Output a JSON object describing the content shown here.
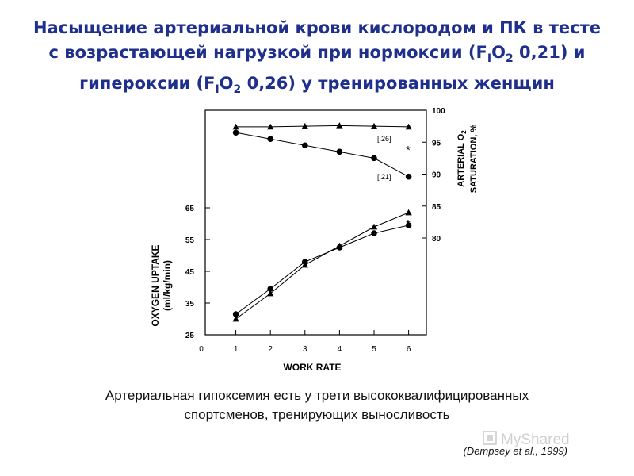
{
  "title": {
    "line1": "Насыщение артериальной крови кислородом и ПК в тесте",
    "line2_a": "с возрастающей нагрузкой при нормоксии (F",
    "sub_i": "I",
    "line2_b": "O",
    "sub_2": "2",
    "line2_c": " 0,21) и",
    "line3_a": "гипероксии (F",
    "line3_b": "O",
    "line3_c": " 0,26) у тренированных женщин"
  },
  "caption": {
    "line1": "Артериальная гипоксемия есть у трети высококвалифицированных",
    "line2": "спортсменов, тренирующих выносливость"
  },
  "reference": "(Dempsey et al., 1999)",
  "watermark": "MyShared",
  "chart_data": {
    "type": "line",
    "xlabel": "WORK RATE",
    "x_ticks": [
      0,
      1,
      2,
      3,
      4,
      5,
      6
    ],
    "left_axis": {
      "label_line1": "OXYGEN UPTAKE",
      "label_line2": "(ml/kg/min)",
      "ticks": [
        25,
        35,
        45,
        55,
        65
      ],
      "range": [
        25,
        65
      ]
    },
    "right_axis": {
      "label_line1": "ARTERIAL O",
      "label_sub": "2",
      "label_line2": "SATURATION, %",
      "ticks": [
        80,
        85,
        90,
        95,
        100
      ],
      "range": [
        80,
        100
      ]
    },
    "saturation_series": [
      {
        "name": "[.26]",
        "marker": "triangle",
        "x": [
          1,
          2,
          3,
          4,
          5,
          6
        ],
        "values": [
          97.4,
          97.4,
          97.5,
          97.6,
          97.5,
          97.4
        ]
      },
      {
        "name": "[.21]",
        "marker": "circle",
        "x": [
          1,
          2,
          3,
          4,
          5,
          6
        ],
        "values": [
          96.5,
          95.5,
          94.5,
          93.5,
          92.5,
          89.6
        ]
      }
    ],
    "vo2_series": [
      {
        "name": "[.26]",
        "marker": "triangle",
        "x": [
          1,
          2,
          3,
          4,
          5,
          6
        ],
        "values": [
          30,
          38,
          47,
          53,
          59,
          63.5
        ]
      },
      {
        "name": "[.21]",
        "marker": "circle",
        "x": [
          1,
          2,
          3,
          4,
          5,
          6
        ],
        "values": [
          31.5,
          39.5,
          48,
          52.5,
          57,
          59.5
        ]
      }
    ],
    "annotations": [
      "*",
      "*"
    ]
  }
}
